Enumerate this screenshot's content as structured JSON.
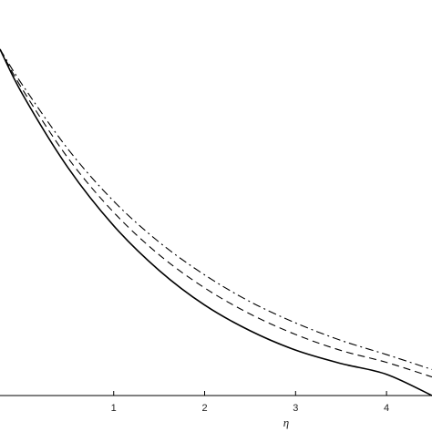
{
  "chart_data": {
    "type": "line",
    "title": "",
    "xlabel": "η",
    "ylabel": "",
    "xlim": [
      -0.25,
      4.5
    ],
    "ylim": [
      0,
      1
    ],
    "grid": false,
    "legend": "none",
    "x_ticks": [
      "1",
      "2",
      "3",
      "4"
    ],
    "x": [
      -0.25,
      0,
      0.5,
      1,
      1.5,
      2,
      2.5,
      3,
      3.5,
      4,
      4.5
    ],
    "series": [
      {
        "line_style": "solid",
        "color": "#000000",
        "values": [
          0.93,
          0.808,
          0.611,
          0.456,
          0.336,
          0.243,
          0.174,
          0.122,
          0.086,
          0.057,
          0.0
        ]
      },
      {
        "line_style": "dashed",
        "color": "#000000",
        "values": [
          0.93,
          0.821,
          0.637,
          0.492,
          0.378,
          0.289,
          0.219,
          0.164,
          0.121,
          0.089,
          0.05
        ]
      },
      {
        "line_style": "dash-dot",
        "color": "#000000",
        "values": [
          0.93,
          0.833,
          0.661,
          0.522,
          0.412,
          0.324,
          0.252,
          0.195,
          0.148,
          0.11,
          0.07
        ]
      }
    ]
  }
}
